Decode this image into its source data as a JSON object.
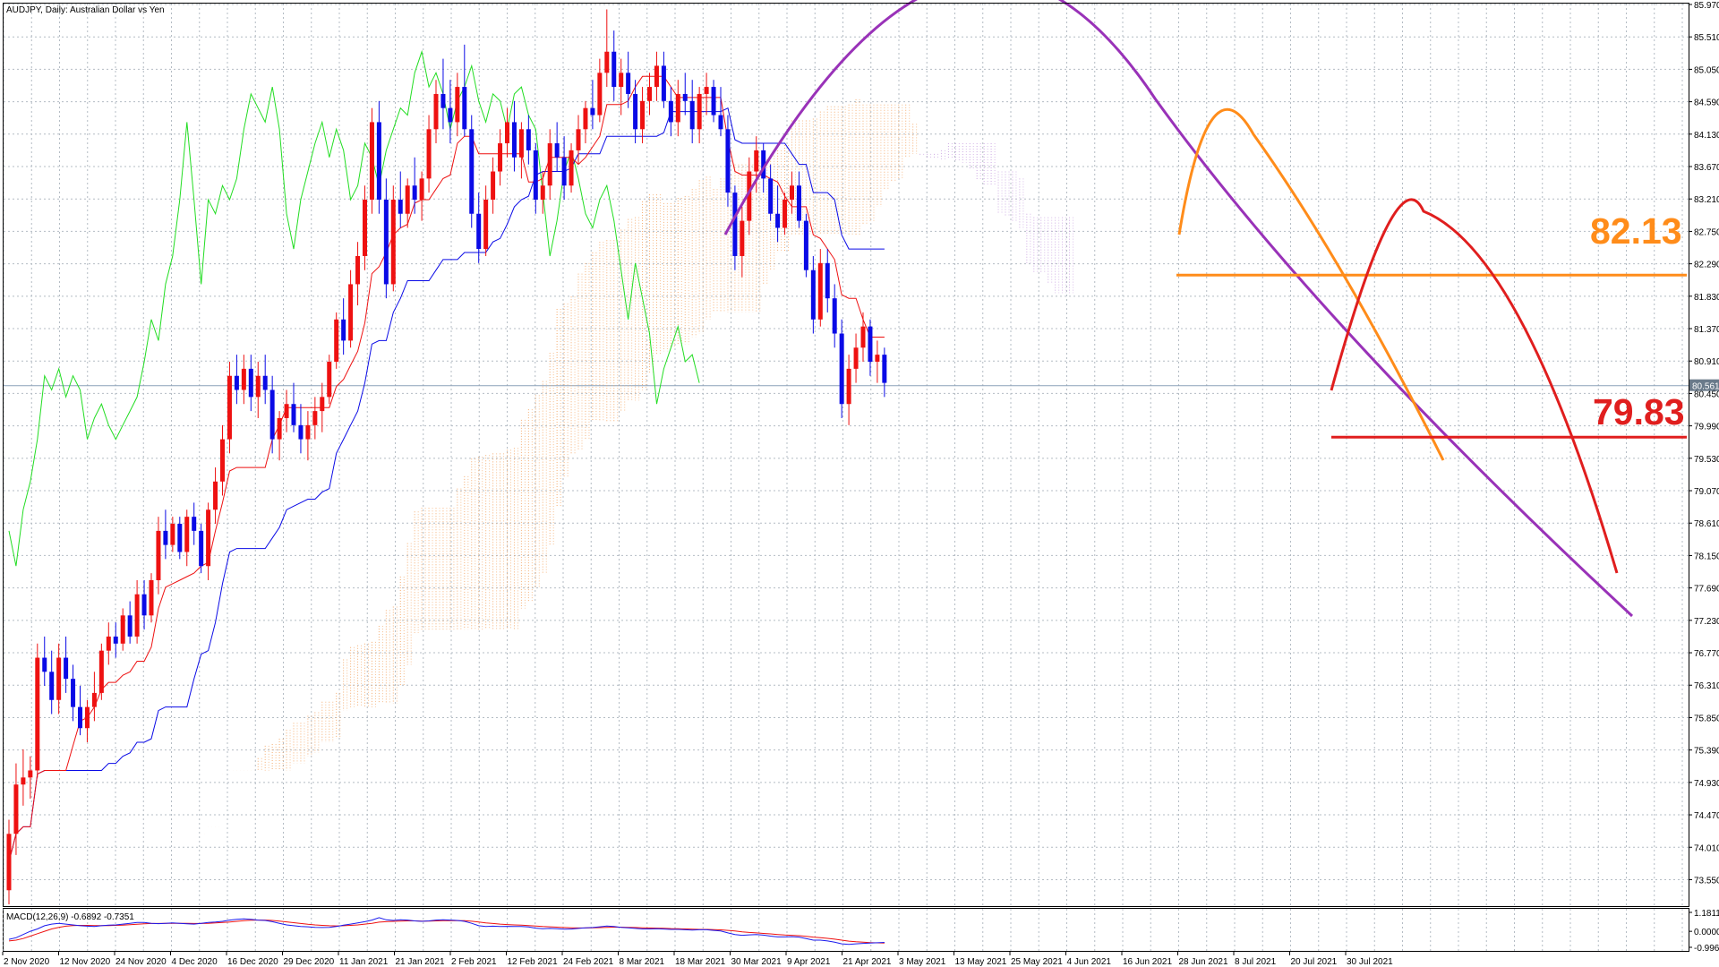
{
  "chart_data": {
    "type": "candlestick",
    "title": "AUDJPY, Daily:  Australian Dollar vs Yen",
    "symbol": "AUDJPY",
    "timeframe": "Daily",
    "description": "Australian Dollar vs Yen",
    "price_axis": {
      "ylim": [
        73.2,
        85.97
      ],
      "ticks": [
        "85.970",
        "85.510",
        "85.050",
        "84.590",
        "84.130",
        "83.670",
        "83.210",
        "82.750",
        "82.290",
        "81.830",
        "81.370",
        "80.910",
        "80.450",
        "79.990",
        "79.530",
        "79.070",
        "78.610",
        "78.150",
        "77.690",
        "77.230",
        "76.770",
        "76.310",
        "75.850",
        "75.390",
        "74.930",
        "74.470",
        "74.010",
        "73.550"
      ],
      "current_price": "80.561",
      "grid": true
    },
    "x_axis": {
      "date_labels": [
        "2 Nov 2020",
        "12 Nov 2020",
        "24 Nov 2020",
        "4 Dec 2020",
        "16 Dec 2020",
        "29 Dec 2020",
        "11 Jan 2021",
        "21 Jan 2021",
        "2 Feb 2021",
        "12 Feb 2021",
        "24 Feb 2021",
        "8 Mar 2021",
        "18 Mar 2021",
        "30 Mar 2021",
        "9 Apr 2021",
        "21 Apr 2021",
        "3 May 2021",
        "13 May 2021",
        "25 May 2021",
        "4 Jun 2021",
        "16 Jun 2021",
        "28 Jun 2021",
        "8 Jul 2021",
        "20 Jul 2021",
        "30 Jul 2021"
      ]
    },
    "candle_colors": {
      "bull": "#ee1111",
      "bear": "#0a0ae6"
    },
    "candles": [
      [
        73.4,
        74.4,
        73.2,
        74.2
      ],
      [
        74.2,
        75.2,
        73.9,
        74.9
      ],
      [
        74.9,
        75.4,
        74.6,
        75.0
      ],
      [
        75.0,
        75.3,
        74.7,
        75.1
      ],
      [
        75.1,
        76.9,
        75.0,
        76.7
      ],
      [
        76.7,
        77.0,
        76.3,
        76.5
      ],
      [
        76.5,
        76.8,
        75.9,
        76.1
      ],
      [
        76.1,
        76.9,
        75.9,
        76.7
      ],
      [
        76.7,
        77.0,
        76.2,
        76.4
      ],
      [
        76.4,
        76.6,
        75.8,
        76.0
      ],
      [
        76.0,
        76.3,
        75.6,
        75.7
      ],
      [
        75.7,
        76.1,
        75.5,
        76.0
      ],
      [
        76.0,
        76.5,
        75.8,
        76.2
      ],
      [
        76.2,
        76.9,
        76.1,
        76.8
      ],
      [
        76.8,
        77.2,
        76.6,
        77.0
      ],
      [
        77.0,
        77.2,
        76.7,
        76.9
      ],
      [
        76.9,
        77.4,
        76.8,
        77.3
      ],
      [
        77.3,
        77.5,
        76.9,
        77.0
      ],
      [
        77.0,
        77.8,
        76.9,
        77.6
      ],
      [
        77.6,
        77.8,
        77.1,
        77.3
      ],
      [
        77.3,
        77.9,
        77.2,
        77.8
      ],
      [
        77.8,
        78.7,
        77.6,
        78.5
      ],
      [
        78.5,
        78.8,
        78.1,
        78.3
      ],
      [
        78.3,
        78.7,
        78.2,
        78.6
      ],
      [
        78.6,
        78.7,
        78.1,
        78.2
      ],
      [
        78.2,
        78.8,
        78.0,
        78.7
      ],
      [
        78.7,
        78.9,
        78.3,
        78.5
      ],
      [
        78.5,
        78.6,
        77.9,
        78.0
      ],
      [
        78.0,
        78.9,
        77.8,
        78.8
      ],
      [
        78.8,
        79.4,
        78.6,
        79.2
      ],
      [
        79.2,
        80.0,
        79.0,
        79.8
      ],
      [
        79.8,
        80.9,
        79.6,
        80.7
      ],
      [
        80.7,
        81.0,
        80.3,
        80.5
      ],
      [
        80.5,
        81.0,
        80.3,
        80.8
      ],
      [
        80.8,
        81.0,
        80.2,
        80.4
      ],
      [
        80.4,
        80.9,
        80.1,
        80.7
      ],
      [
        80.7,
        81.0,
        80.3,
        80.5
      ],
      [
        80.5,
        80.7,
        79.6,
        79.8
      ],
      [
        79.8,
        80.2,
        79.5,
        80.1
      ],
      [
        80.1,
        80.5,
        79.9,
        80.3
      ],
      [
        80.3,
        80.6,
        79.9,
        80.0
      ],
      [
        80.0,
        80.3,
        79.6,
        79.8
      ],
      [
        79.8,
        80.2,
        79.5,
        80.0
      ],
      [
        80.0,
        80.4,
        79.8,
        80.2
      ],
      [
        80.2,
        80.6,
        79.9,
        80.4
      ],
      [
        80.4,
        81.0,
        80.3,
        80.9
      ],
      [
        80.9,
        81.6,
        80.8,
        81.5
      ],
      [
        81.5,
        81.8,
        81.0,
        81.2
      ],
      [
        81.2,
        82.2,
        81.1,
        82.0
      ],
      [
        82.0,
        82.6,
        81.7,
        82.4
      ],
      [
        82.4,
        83.4,
        82.2,
        83.2
      ],
      [
        83.2,
        84.5,
        83.0,
        84.3
      ],
      [
        84.3,
        84.6,
        83.0,
        83.2
      ],
      [
        83.2,
        83.5,
        81.8,
        82.0
      ],
      [
        82.0,
        83.4,
        81.9,
        83.2
      ],
      [
        83.2,
        83.6,
        82.8,
        83.0
      ],
      [
        83.0,
        83.5,
        82.8,
        83.4
      ],
      [
        83.4,
        83.8,
        83.0,
        83.2
      ],
      [
        83.2,
        83.6,
        82.9,
        83.5
      ],
      [
        83.5,
        84.4,
        83.3,
        84.2
      ],
      [
        84.2,
        84.9,
        84.0,
        84.7
      ],
      [
        84.7,
        85.2,
        84.2,
        84.5
      ],
      [
        84.5,
        84.9,
        84.0,
        84.3
      ],
      [
        84.3,
        85.0,
        84.1,
        84.8
      ],
      [
        84.8,
        85.4,
        84.1,
        84.2
      ],
      [
        84.2,
        84.4,
        82.8,
        83.0
      ],
      [
        83.0,
        83.3,
        82.3,
        82.5
      ],
      [
        82.5,
        83.4,
        82.4,
        83.2
      ],
      [
        83.2,
        83.8,
        83.0,
        83.6
      ],
      [
        83.6,
        84.2,
        83.4,
        84.0
      ],
      [
        84.0,
        84.5,
        83.8,
        84.3
      ],
      [
        84.3,
        84.6,
        83.6,
        83.8
      ],
      [
        83.8,
        84.3,
        83.5,
        84.2
      ],
      [
        84.2,
        84.4,
        83.7,
        83.9
      ],
      [
        83.9,
        84.0,
        83.0,
        83.2
      ],
      [
        83.2,
        83.6,
        83.0,
        83.4
      ],
      [
        83.4,
        84.2,
        83.2,
        84.0
      ],
      [
        84.0,
        84.3,
        83.6,
        83.8
      ],
      [
        83.8,
        84.1,
        83.2,
        83.4
      ],
      [
        83.4,
        84.0,
        83.3,
        83.9
      ],
      [
        83.9,
        84.4,
        83.7,
        84.2
      ],
      [
        84.2,
        84.6,
        84.0,
        84.5
      ],
      [
        84.5,
        84.9,
        84.2,
        84.4
      ],
      [
        84.4,
        85.2,
        84.3,
        85.0
      ],
      [
        85.0,
        85.9,
        84.8,
        85.3
      ],
      [
        85.3,
        85.6,
        84.6,
        84.8
      ],
      [
        84.8,
        85.2,
        84.4,
        85.0
      ],
      [
        85.0,
        85.3,
        84.5,
        84.7
      ],
      [
        84.7,
        84.9,
        84.0,
        84.2
      ],
      [
        84.2,
        84.8,
        84.0,
        84.6
      ],
      [
        84.6,
        85.0,
        84.4,
        84.8
      ],
      [
        84.8,
        85.3,
        84.6,
        85.1
      ],
      [
        85.1,
        85.3,
        84.5,
        84.6
      ],
      [
        84.6,
        84.8,
        84.1,
        84.3
      ],
      [
        84.3,
        84.9,
        84.1,
        84.7
      ],
      [
        84.7,
        85.0,
        84.4,
        84.6
      ],
      [
        84.6,
        84.9,
        84.0,
        84.2
      ],
      [
        84.2,
        84.8,
        84.0,
        84.7
      ],
      [
        84.7,
        85.0,
        84.4,
        84.8
      ],
      [
        84.8,
        84.9,
        84.3,
        84.4
      ],
      [
        84.4,
        84.8,
        84.1,
        84.2
      ],
      [
        84.2,
        84.4,
        83.1,
        83.3
      ],
      [
        83.3,
        83.4,
        82.2,
        82.4
      ],
      [
        82.4,
        83.1,
        82.1,
        82.9
      ],
      [
        82.9,
        83.8,
        82.7,
        83.6
      ],
      [
        83.6,
        84.1,
        83.3,
        83.9
      ],
      [
        83.9,
        84.0,
        83.3,
        83.5
      ],
      [
        83.5,
        83.7,
        82.9,
        83.0
      ],
      [
        83.0,
        83.4,
        82.6,
        82.8
      ],
      [
        82.8,
        83.3,
        82.7,
        83.2
      ],
      [
        83.2,
        83.6,
        83.0,
        83.4
      ],
      [
        83.4,
        83.6,
        82.8,
        82.9
      ],
      [
        82.9,
        83.0,
        82.1,
        82.2
      ],
      [
        82.2,
        82.4,
        81.3,
        81.5
      ],
      [
        81.5,
        82.5,
        81.4,
        82.3
      ],
      [
        82.3,
        82.5,
        81.6,
        81.8
      ],
      [
        81.8,
        82.0,
        81.1,
        81.3
      ],
      [
        81.3,
        81.5,
        80.1,
        80.3
      ],
      [
        80.3,
        81.0,
        80.0,
        80.8
      ],
      [
        80.8,
        81.3,
        80.6,
        81.1
      ],
      [
        81.1,
        81.6,
        80.9,
        81.4
      ],
      [
        81.4,
        81.5,
        80.7,
        80.9
      ],
      [
        80.9,
        81.2,
        80.6,
        81.0
      ],
      [
        81.0,
        81.1,
        80.4,
        80.6
      ]
    ],
    "indicators": {
      "tenkan_sen_color": "#ee1111",
      "kijun_sen_color": "#0a0ae6",
      "chikou_span_color": "#22dd22",
      "cloud_color": "#f4a460"
    },
    "annotations": {
      "level_upper": {
        "label": "82.13",
        "value": 82.13,
        "color": "#ff8c1a"
      },
      "level_lower": {
        "label": "79.83",
        "value": 79.83,
        "color": "#e01e1e"
      },
      "arc_color": "#9932b8",
      "orange_color": "#ff8c1a",
      "red_color": "#e01e1e"
    },
    "macd": {
      "label": "MACD(12,26,9) -0.6892 -0.7351",
      "ticks": [
        "1.1811",
        "0.0000",
        "-0.9969"
      ],
      "ylim": [
        -0.9969,
        1.1811
      ],
      "line_color": "#1a1aee",
      "signal_color": "#ee1111",
      "macd_values": [
        -0.5,
        -0.4,
        -0.2,
        0.0,
        0.15,
        0.35,
        0.45,
        0.5,
        0.45,
        0.4,
        0.35,
        0.32,
        0.3,
        0.35,
        0.38,
        0.4,
        0.45,
        0.5,
        0.55,
        0.55,
        0.5,
        0.48,
        0.5,
        0.52,
        0.5,
        0.47,
        0.45,
        0.5,
        0.55,
        0.58,
        0.62,
        0.7,
        0.75,
        0.78,
        0.75,
        0.7,
        0.68,
        0.6,
        0.5,
        0.4,
        0.35,
        0.3,
        0.28,
        0.25,
        0.24,
        0.25,
        0.3,
        0.38,
        0.45,
        0.52,
        0.6,
        0.7,
        0.85,
        0.72,
        0.68,
        0.72,
        0.7,
        0.65,
        0.62,
        0.65,
        0.7,
        0.72,
        0.7,
        0.68,
        0.62,
        0.5,
        0.35,
        0.3,
        0.32,
        0.3,
        0.31,
        0.3,
        0.3,
        0.27,
        0.2,
        0.16,
        0.18,
        0.16,
        0.13,
        0.14,
        0.18,
        0.22,
        0.24,
        0.28,
        0.33,
        0.3,
        0.25,
        0.22,
        0.18,
        0.15,
        0.15,
        0.16,
        0.14,
        0.12,
        0.12,
        0.1,
        0.08,
        0.1,
        0.1,
        0.06,
        0.02,
        -0.1,
        -0.2,
        -0.25,
        -0.22,
        -0.2,
        -0.24,
        -0.3,
        -0.35,
        -0.35,
        -0.33,
        -0.36,
        -0.45,
        -0.55,
        -0.55,
        -0.6,
        -0.68,
        -0.78,
        -0.82,
        -0.78,
        -0.75,
        -0.73,
        -0.71,
        -0.69
      ],
      "signal_values": [
        -0.6,
        -0.55,
        -0.45,
        -0.3,
        -0.15,
        0.0,
        0.15,
        0.25,
        0.32,
        0.36,
        0.37,
        0.37,
        0.36,
        0.36,
        0.36,
        0.37,
        0.39,
        0.41,
        0.44,
        0.47,
        0.49,
        0.49,
        0.5,
        0.5,
        0.5,
        0.5,
        0.49,
        0.49,
        0.5,
        0.52,
        0.55,
        0.58,
        0.62,
        0.66,
        0.69,
        0.7,
        0.7,
        0.68,
        0.64,
        0.59,
        0.54,
        0.49,
        0.44,
        0.4,
        0.37,
        0.35,
        0.34,
        0.35,
        0.37,
        0.4,
        0.45,
        0.5,
        0.57,
        0.6,
        0.62,
        0.64,
        0.65,
        0.65,
        0.64,
        0.64,
        0.65,
        0.66,
        0.67,
        0.67,
        0.66,
        0.63,
        0.58,
        0.53,
        0.49,
        0.45,
        0.42,
        0.4,
        0.38,
        0.36,
        0.33,
        0.3,
        0.28,
        0.26,
        0.24,
        0.22,
        0.21,
        0.21,
        0.22,
        0.23,
        0.25,
        0.26,
        0.26,
        0.25,
        0.24,
        0.22,
        0.21,
        0.2,
        0.19,
        0.17,
        0.16,
        0.15,
        0.13,
        0.12,
        0.12,
        0.11,
        0.09,
        0.06,
        0.02,
        -0.03,
        -0.07,
        -0.1,
        -0.13,
        -0.16,
        -0.2,
        -0.23,
        -0.25,
        -0.27,
        -0.31,
        -0.36,
        -0.4,
        -0.44,
        -0.49,
        -0.55,
        -0.61,
        -0.65,
        -0.68,
        -0.7,
        -0.72,
        -0.73
      ]
    }
  }
}
